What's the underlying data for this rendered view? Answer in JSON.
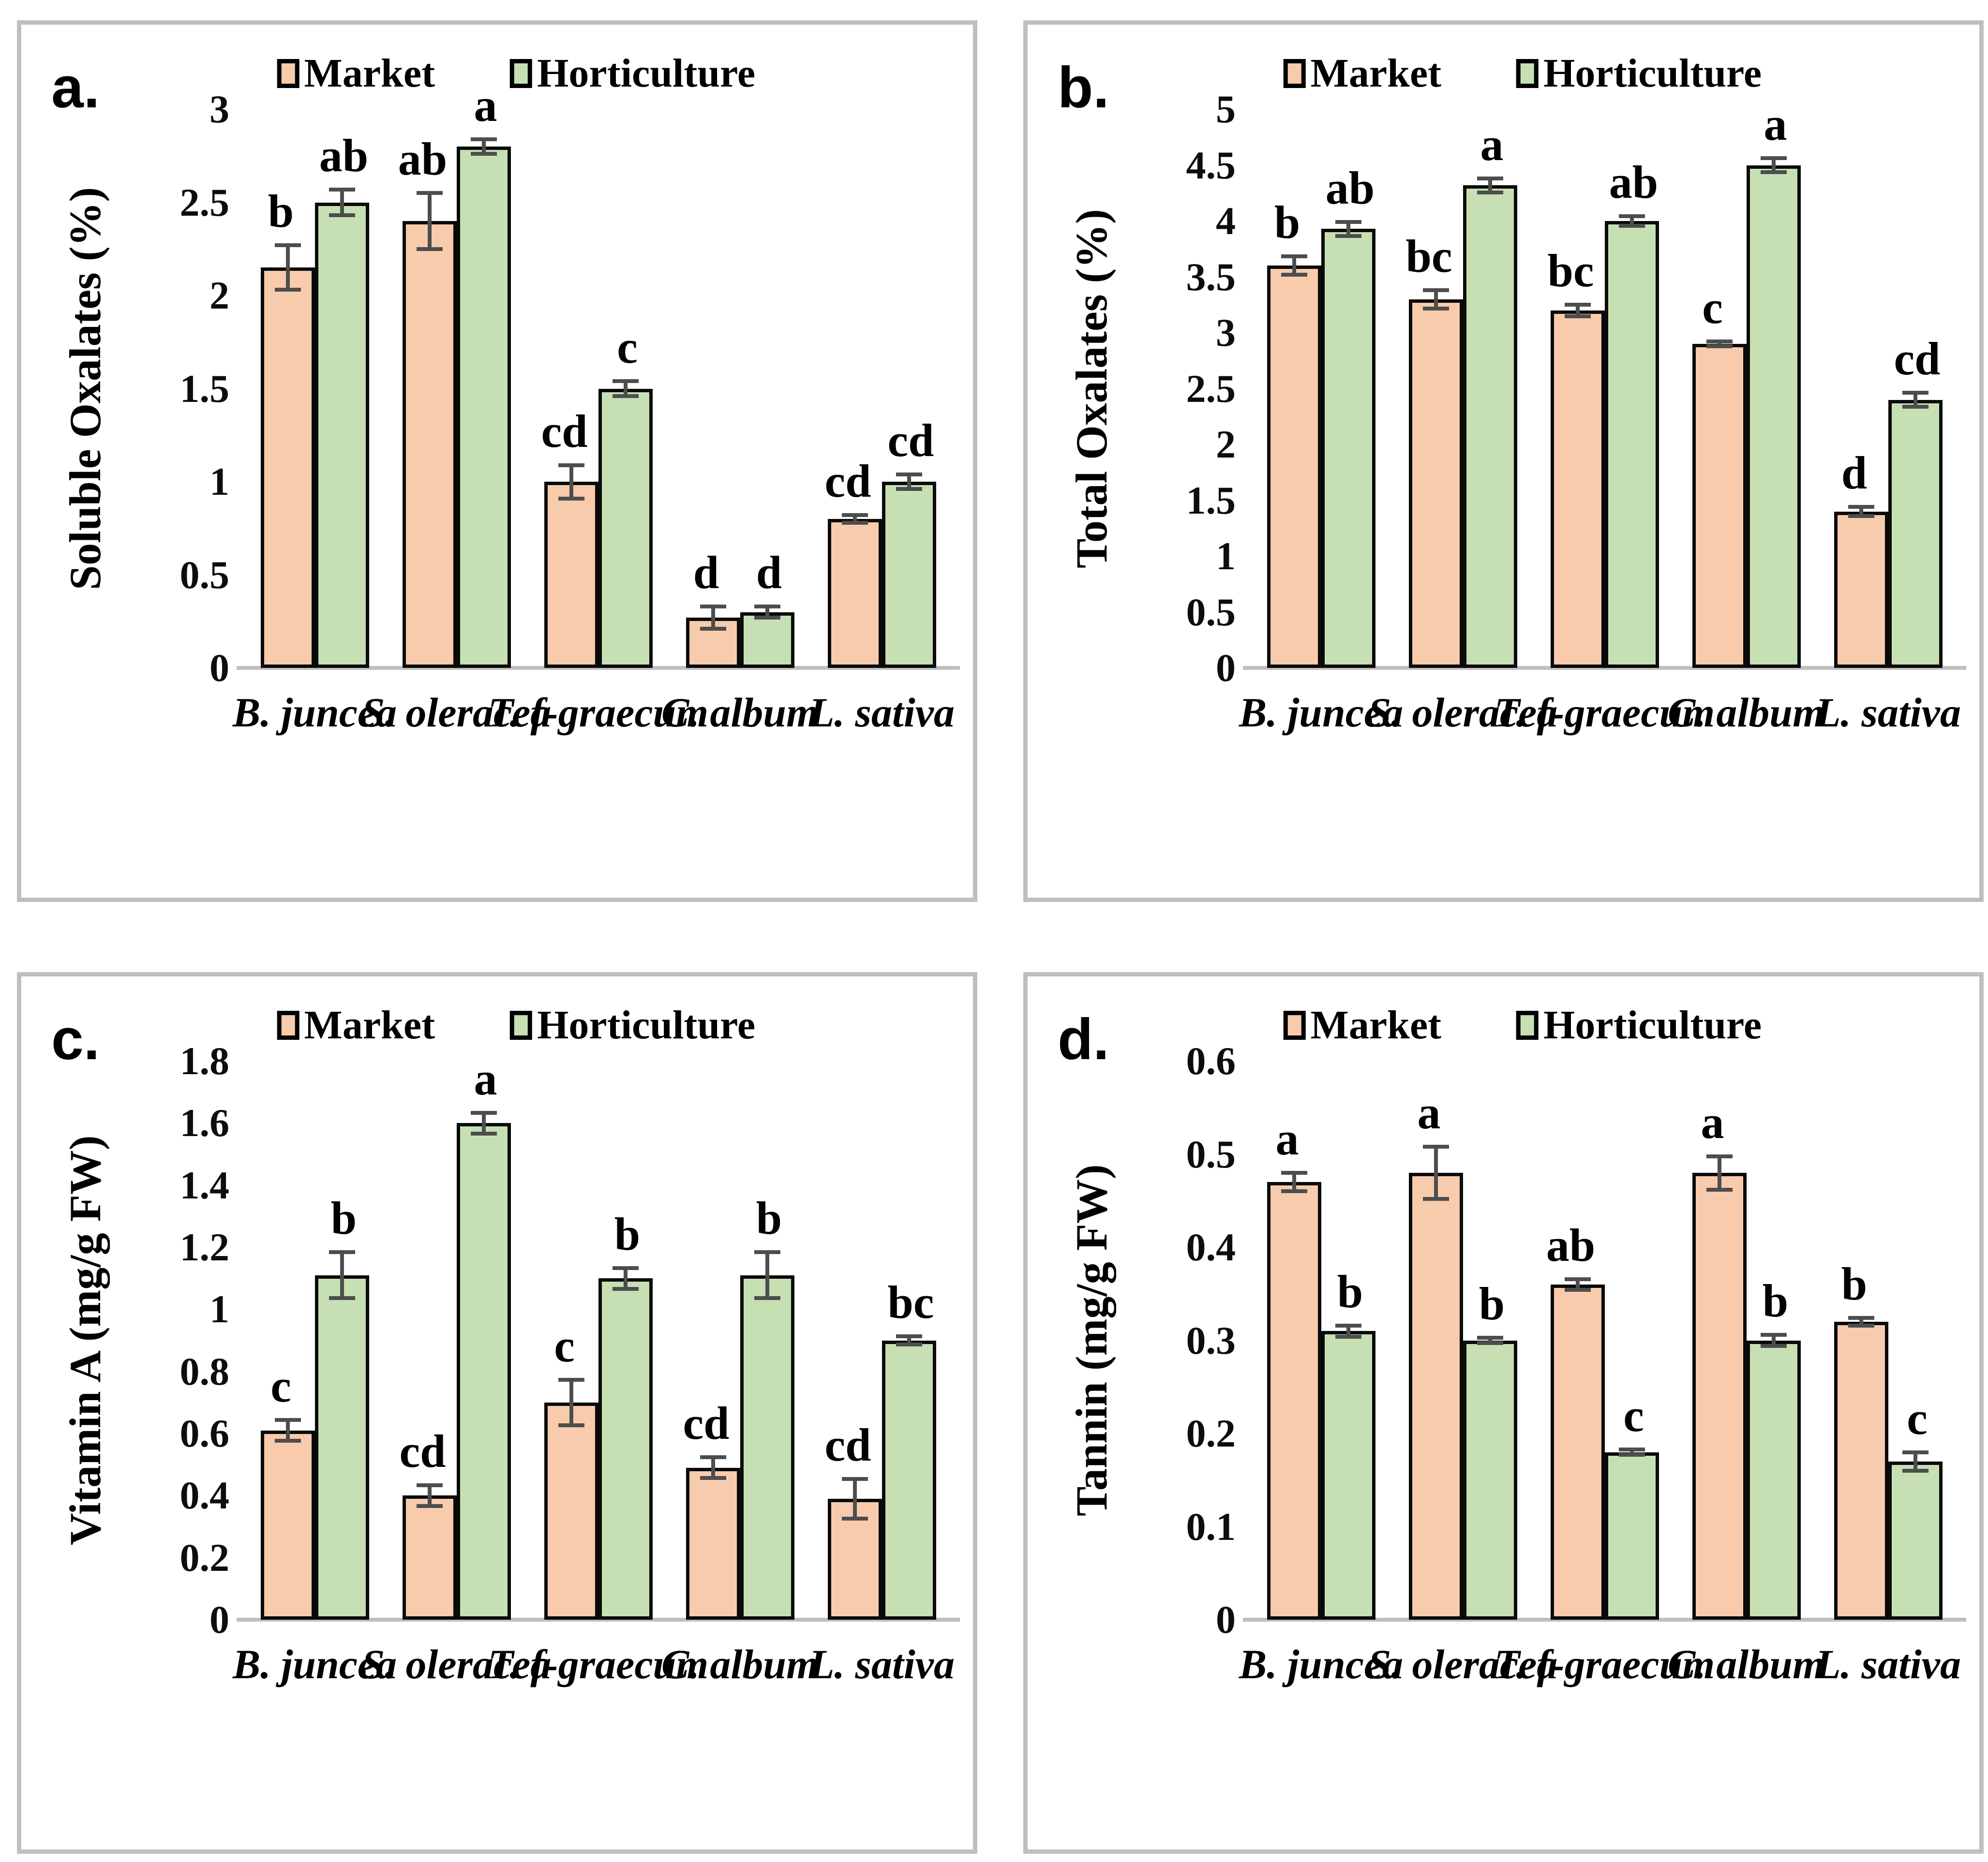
{
  "figure": {
    "background": "#ffffff",
    "panel_border_color": "#bfbfbf",
    "error_bar_color": "#4d4d4d",
    "bar_border_color": "#000000"
  },
  "chart_data": [
    {
      "id": "a",
      "type": "bar",
      "panel_label": "a.",
      "ylabel": "Soluble Oxalates (%)",
      "ylim": [
        0,
        3
      ],
      "yticks": [
        3,
        2.5,
        2,
        1.5,
        1,
        0.5,
        0
      ],
      "grid": false,
      "legend_position": "top",
      "categories": [
        "B. juncea",
        "S. oleracea",
        "T. f-graecum",
        "C. album",
        "L. sativa"
      ],
      "series": [
        {
          "name": "Market",
          "color": "#F8CBAD",
          "values": [
            2.15,
            2.4,
            1.0,
            0.27,
            0.8
          ],
          "errors": [
            0.13,
            0.16,
            0.1,
            0.07,
            0.03
          ],
          "sig_letters": [
            "b",
            "ab",
            "cd",
            "d",
            "cd"
          ]
        },
        {
          "name": "Horticulture",
          "color": "#C6E0B4",
          "values": [
            2.5,
            2.8,
            1.5,
            0.3,
            1.0
          ],
          "errors": [
            0.08,
            0.05,
            0.05,
            0.04,
            0.05
          ],
          "sig_letters": [
            "ab",
            "a",
            "c",
            "d",
            "cd"
          ]
        }
      ]
    },
    {
      "id": "b",
      "type": "bar",
      "panel_label": "b.",
      "ylabel": "Total Oxalates (%)",
      "ylim": [
        0,
        5
      ],
      "yticks": [
        5,
        4.5,
        4,
        3.5,
        3,
        2.5,
        2,
        1.5,
        1,
        0.5,
        0
      ],
      "grid": false,
      "legend_position": "top",
      "categories": [
        "B. juncea",
        "S. oleracea",
        "T. f-graecum",
        "C. album",
        "L. sativa"
      ],
      "series": [
        {
          "name": "Market",
          "color": "#F8CBAD",
          "values": [
            3.6,
            3.3,
            3.2,
            2.9,
            1.4
          ],
          "errors": [
            0.1,
            0.1,
            0.07,
            0.04,
            0.06
          ],
          "sig_letters": [
            "b",
            "bc",
            "bc",
            "c",
            "d"
          ]
        },
        {
          "name": "Horticulture",
          "color": "#C6E0B4",
          "values": [
            3.93,
            4.32,
            4.0,
            4.5,
            2.4
          ],
          "errors": [
            0.08,
            0.08,
            0.06,
            0.08,
            0.08
          ],
          "sig_letters": [
            "ab",
            "a",
            "ab",
            "a",
            "cd"
          ]
        }
      ]
    },
    {
      "id": "c",
      "type": "bar",
      "panel_label": "c.",
      "ylabel": "Vitamin A (mg/g FW)",
      "ylim": [
        0,
        1.8
      ],
      "yticks": [
        1.8,
        1.6,
        1.4,
        1.2,
        1,
        0.8,
        0.6,
        0.4,
        0.2,
        0
      ],
      "grid": false,
      "legend_position": "top",
      "categories": [
        "B. juncea",
        "S. oleracea",
        "T. f-graecum",
        "C. album",
        "L. sativa"
      ],
      "series": [
        {
          "name": "Market",
          "color": "#F8CBAD",
          "values": [
            0.61,
            0.4,
            0.7,
            0.49,
            0.39
          ],
          "errors": [
            0.04,
            0.04,
            0.08,
            0.04,
            0.07
          ],
          "sig_letters": [
            "c",
            "cd",
            "c",
            "cd",
            "cd"
          ]
        },
        {
          "name": "Horticulture",
          "color": "#C6E0B4",
          "values": [
            1.11,
            1.6,
            1.1,
            1.11,
            0.9
          ],
          "errors": [
            0.08,
            0.04,
            0.04,
            0.08,
            0.02
          ],
          "sig_letters": [
            "b",
            "a",
            "b",
            "b",
            "bc"
          ]
        }
      ]
    },
    {
      "id": "d",
      "type": "bar",
      "panel_label": "d.",
      "ylabel": "Tannin (mg/g FW)",
      "ylim": [
        0,
        0.6
      ],
      "yticks": [
        0.6,
        0.5,
        0.4,
        0.3,
        0.2,
        0.1,
        0
      ],
      "grid": false,
      "legend_position": "top",
      "categories": [
        "B. juncea",
        "S. oleracea",
        "T. f-graecum",
        "C. album",
        "L. sativa"
      ],
      "series": [
        {
          "name": "Market",
          "color": "#F8CBAD",
          "values": [
            0.47,
            0.48,
            0.36,
            0.48,
            0.32
          ],
          "errors": [
            0.012,
            0.03,
            0.008,
            0.02,
            0.006
          ],
          "sig_letters": [
            "a",
            "a",
            "ab",
            "a",
            "b"
          ]
        },
        {
          "name": "Horticulture",
          "color": "#C6E0B4",
          "values": [
            0.31,
            0.3,
            0.18,
            0.3,
            0.17
          ],
          "errors": [
            0.008,
            0.005,
            0.005,
            0.008,
            0.012
          ],
          "sig_letters": [
            "b",
            "b",
            "c",
            "b",
            "c"
          ]
        }
      ]
    }
  ]
}
